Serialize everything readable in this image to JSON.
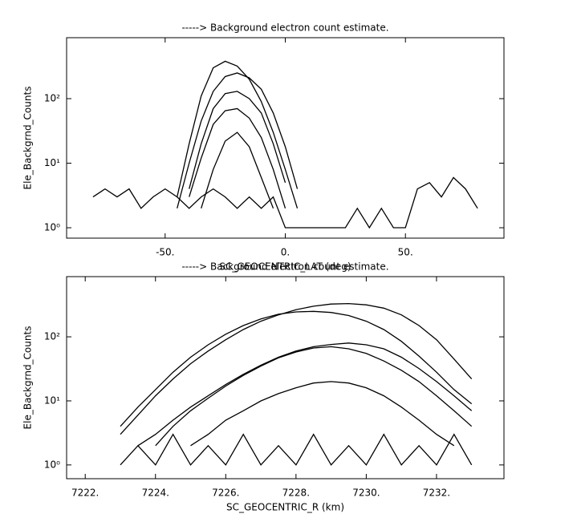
{
  "chart_data": [
    {
      "type": "line",
      "title": "-----> Background electron count estimate.",
      "ylabel": "Ele_Backgrnd_Counts",
      "xlabel": "SC_GEOCENTRIC_LAT (deg)",
      "xlim": [
        -91,
        91
      ],
      "xticks": [
        {
          "value": -50,
          "label": "-50."
        },
        {
          "value": 0,
          "label": "0."
        },
        {
          "value": 50,
          "label": "50."
        }
      ],
      "ylim": [
        0.69,
        880
      ],
      "yscale": "log",
      "yticks": [
        {
          "value": 1,
          "label": "10⁰"
        },
        {
          "value": 10,
          "label": "10¹"
        },
        {
          "value": 100,
          "label": "10²"
        }
      ],
      "color": "#000000",
      "x": [
        -80,
        -75,
        -70,
        -65,
        -60,
        -55,
        -50,
        -45,
        -40,
        -35,
        -30,
        -25,
        -20,
        -15,
        -10,
        -5,
        0,
        5,
        10,
        15,
        20,
        25,
        30,
        35,
        40,
        45,
        50,
        55,
        60,
        65,
        70,
        75,
        80
      ],
      "series": [
        {
          "values": [
            null,
            null,
            null,
            null,
            null,
            null,
            null,
            3,
            20,
            110,
            300,
            380,
            320,
            200,
            90,
            30,
            8,
            2,
            null,
            null,
            null,
            null,
            null,
            null,
            null,
            null,
            null,
            null,
            null,
            null,
            null,
            null,
            null
          ]
        },
        {
          "values": [
            null,
            null,
            null,
            null,
            null,
            null,
            null,
            2,
            10,
            45,
            130,
            220,
            250,
            210,
            140,
            60,
            18,
            4,
            null,
            null,
            null,
            null,
            null,
            null,
            null,
            null,
            null,
            null,
            null,
            null,
            null,
            null,
            null
          ]
        },
        {
          "values": [
            null,
            null,
            null,
            null,
            null,
            null,
            null,
            null,
            4,
            20,
            70,
            120,
            130,
            100,
            60,
            20,
            5,
            null,
            null,
            null,
            null,
            null,
            null,
            null,
            null,
            null,
            null,
            null,
            null,
            null,
            null,
            null,
            null
          ]
        },
        {
          "values": [
            null,
            null,
            null,
            null,
            null,
            null,
            null,
            null,
            3,
            12,
            40,
            65,
            70,
            50,
            25,
            8,
            2,
            null,
            null,
            null,
            null,
            null,
            null,
            null,
            null,
            null,
            null,
            null,
            null,
            null,
            null,
            null,
            null
          ]
        },
        {
          "values": [
            null,
            null,
            null,
            null,
            null,
            null,
            null,
            null,
            null,
            2,
            8,
            22,
            30,
            18,
            6,
            2,
            null,
            null,
            null,
            null,
            null,
            null,
            null,
            null,
            null,
            null,
            null,
            null,
            null,
            null,
            null,
            null,
            null
          ]
        },
        {
          "values": [
            3,
            4,
            3,
            4,
            2,
            3,
            4,
            3,
            2,
            3,
            4,
            3,
            2,
            3,
            2,
            3,
            1,
            1,
            1,
            1,
            1,
            1,
            2,
            1,
            2,
            1,
            1,
            4,
            5,
            3,
            6,
            4,
            2
          ]
        }
      ]
    },
    {
      "type": "line",
      "title": "-----> Background electron count estimate.",
      "ylabel": "Ele_Backgrnd_Counts",
      "xlabel": "SC_GEOCENTRIC_R (km)",
      "xlim": [
        7221.47,
        7233.92
      ],
      "xticks": [
        {
          "value": 7222,
          "label": "7222."
        },
        {
          "value": 7224,
          "label": "7224."
        },
        {
          "value": 7226,
          "label": "7226."
        },
        {
          "value": 7228,
          "label": "7228."
        },
        {
          "value": 7230,
          "label": "7230."
        },
        {
          "value": 7232,
          "label": "7232."
        }
      ],
      "ylim": [
        0.61,
        870
      ],
      "yscale": "log",
      "yticks": [
        {
          "value": 1,
          "label": "10⁰"
        },
        {
          "value": 10,
          "label": "10¹"
        },
        {
          "value": 100,
          "label": "10²"
        }
      ],
      "color": "#000000",
      "x": [
        7223,
        7223.5,
        7224,
        7224.5,
        7225,
        7225.5,
        7226,
        7226.5,
        7227,
        7227.5,
        7228,
        7228.5,
        7229,
        7229.5,
        7230,
        7230.5,
        7231,
        7231.5,
        7232,
        7232.5,
        7233
      ],
      "series": [
        {
          "values": [
            3,
            6,
            12,
            22,
            38,
            60,
            90,
            130,
            175,
            220,
            265,
            300,
            325,
            330,
            315,
            280,
            220,
            150,
            90,
            45,
            22
          ]
        },
        {
          "values": [
            4,
            8,
            15,
            28,
            48,
            75,
            110,
            150,
            190,
            225,
            245,
            250,
            240,
            215,
            175,
            130,
            85,
            50,
            28,
            15,
            9
          ]
        },
        {
          "values": [
            null,
            2,
            3,
            5,
            8,
            12,
            18,
            26,
            36,
            48,
            60,
            70,
            76,
            80,
            75,
            65,
            48,
            32,
            20,
            12,
            7
          ]
        },
        {
          "values": [
            null,
            null,
            2,
            4,
            7,
            11,
            17,
            25,
            35,
            47,
            58,
            67,
            70,
            65,
            55,
            42,
            30,
            20,
            12,
            7,
            4
          ]
        },
        {
          "values": [
            null,
            null,
            null,
            null,
            2,
            3,
            5,
            7,
            10,
            13,
            16,
            19,
            20,
            19,
            16,
            12,
            8,
            5,
            3,
            2,
            null
          ]
        },
        {
          "values": [
            1,
            2,
            1,
            3,
            1,
            2,
            1,
            3,
            1,
            2,
            1,
            3,
            1,
            2,
            1,
            3,
            1,
            2,
            1,
            3,
            1
          ]
        }
      ]
    }
  ]
}
